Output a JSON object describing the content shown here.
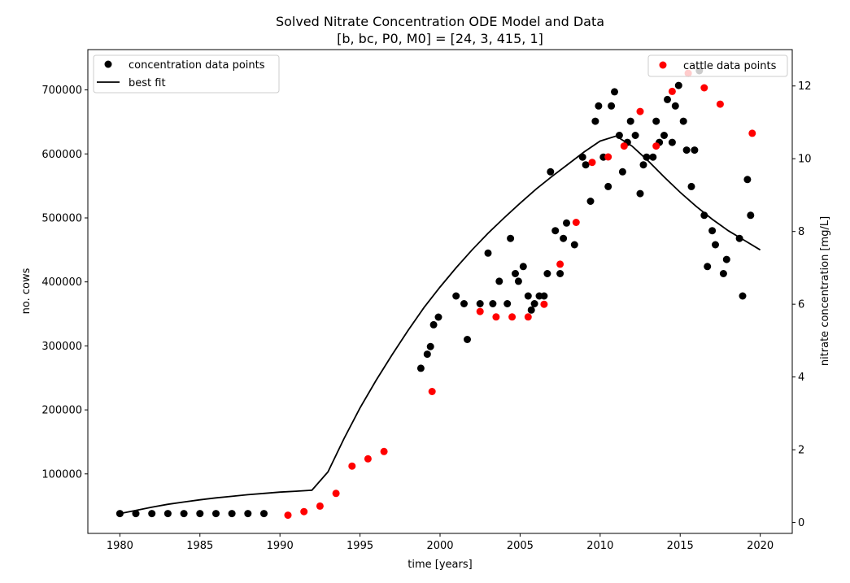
{
  "chart_data": {
    "type": "scatter",
    "title": "Solved Nitrate Concentration ODE Model and Data",
    "subtitle": "[b, bc, P0, M0] = [24, 3, 415, 1]",
    "xlabel": "time [years]",
    "ylabel_left": "no. cows",
    "ylabel_right": "nitrate concentration [mg/L]",
    "xlim": [
      1978,
      2022
    ],
    "ylim_left": [
      7000,
      763000
    ],
    "ylim_right": [
      -0.3,
      13.0
    ],
    "x_ticks": [
      1980,
      1985,
      1990,
      1995,
      2000,
      2005,
      2010,
      2015,
      2020
    ],
    "y_left_ticks": [
      100000,
      200000,
      300000,
      400000,
      500000,
      600000,
      700000
    ],
    "y_right_ticks": [
      0,
      2,
      4,
      6,
      8,
      10,
      12
    ],
    "grid": false,
    "legend_left": {
      "placement": "top-left",
      "entries": [
        {
          "label": "concentration data points",
          "marker": "dot",
          "color": "#000000"
        },
        {
          "label": "best fit",
          "marker": "line",
          "color": "#000000"
        }
      ]
    },
    "legend_right": {
      "placement": "top-right",
      "entries": [
        {
          "label": "cattle data points",
          "marker": "dot",
          "color": "#ff0000"
        }
      ]
    },
    "series": [
      {
        "name": "concentration data points",
        "axis": "left",
        "style": "markers",
        "color": "#000000",
        "x": [
          1980.0,
          1981.0,
          1982.0,
          1983.0,
          1984.0,
          1985.0,
          1986.0,
          1987.0,
          1988.0,
          1989.0,
          1998.8,
          1999.2,
          1999.4,
          1999.6,
          1999.9,
          2001.0,
          2001.5,
          2001.7,
          2002.5,
          2003.0,
          2003.3,
          2003.7,
          2004.2,
          2004.4,
          2004.7,
          2004.9,
          2005.2,
          2005.5,
          2005.7,
          2005.9,
          2006.2,
          2006.5,
          2006.7,
          2006.9,
          2007.2,
          2007.5,
          2007.7,
          2007.9,
          2008.4,
          2008.9,
          2009.1,
          2009.4,
          2009.7,
          2009.9,
          2010.2,
          2010.5,
          2010.7,
          2010.9,
          2011.2,
          2011.4,
          2011.7,
          2011.9,
          2012.2,
          2012.5,
          2012.7,
          2012.9,
          2013.3,
          2013.5,
          2013.7,
          2014.0,
          2014.2,
          2014.5,
          2014.7,
          2014.9,
          2015.2,
          2015.4,
          2015.7,
          2015.9,
          2016.2,
          2016.5,
          2016.7,
          2017.0,
          2017.2,
          2017.7,
          2017.9,
          2018.7,
          2018.9,
          2019.2,
          2019.4
        ],
        "y": [
          38000,
          38000,
          38000,
          38000,
          38000,
          38000,
          38000,
          38000,
          38000,
          38000,
          265000,
          287000,
          299000,
          333000,
          345000,
          378000,
          366000,
          310000,
          366000,
          445000,
          366000,
          401000,
          366000,
          468000,
          413000,
          401000,
          424000,
          378000,
          356000,
          366000,
          378000,
          378000,
          413000,
          572000,
          480000,
          413000,
          468000,
          492000,
          458000,
          595000,
          583000,
          526000,
          651000,
          675000,
          595000,
          549000,
          675000,
          697000,
          629000,
          572000,
          618000,
          651000,
          629000,
          538000,
          583000,
          595000,
          595000,
          651000,
          618000,
          629000,
          685000,
          618000,
          675000,
          707000,
          651000,
          606000,
          549000,
          606000,
          730000,
          504000,
          424000,
          480000,
          458000,
          413000,
          435000,
          468000,
          378000,
          560000,
          504000
        ]
      },
      {
        "name": "best fit",
        "axis": "left",
        "style": "line",
        "color": "#000000",
        "x": [
          1980,
          1981,
          1982,
          1983,
          1984,
          1985,
          1986,
          1987,
          1988,
          1989,
          1990,
          1991,
          1992,
          1993,
          1994,
          1995,
          1996,
          1997,
          1998,
          1999,
          2000,
          2001,
          2002,
          2003,
          2004,
          2005,
          2006,
          2007,
          2008,
          2009,
          2010,
          2011,
          2012,
          2013,
          2014,
          2015,
          2016,
          2017,
          2018,
          2019,
          2020
        ],
        "y": [
          38000,
          43000,
          48000,
          52500,
          56000,
          59500,
          62500,
          65000,
          67500,
          69500,
          71500,
          73000,
          74500,
          103000,
          155000,
          203000,
          246000,
          286000,
          324000,
          360000,
          392000,
          422000,
          450000,
          476000,
          500000,
          523000,
          545000,
          565000,
          584000,
          603000,
          620000,
          628000,
          612000,
          589000,
          564000,
          540000,
          518000,
          498000,
          480000,
          465000,
          450000
        ]
      },
      {
        "name": "cattle data points",
        "axis": "right",
        "style": "markers",
        "color": "#ff0000",
        "x": [
          1990.5,
          1991.5,
          1992.5,
          1993.5,
          1994.5,
          1995.5,
          1996.5,
          1999.5,
          2002.5,
          2003.5,
          2004.5,
          2005.5,
          2006.5,
          2007.5,
          2008.5,
          2009.5,
          2010.5,
          2011.5,
          2012.5,
          2013.5,
          2014.5,
          2015.5,
          2016.5,
          2017.5,
          2019.5
        ],
        "y": [
          0.2,
          0.3,
          0.45,
          0.8,
          1.55,
          1.75,
          1.95,
          3.6,
          5.8,
          5.65,
          5.65,
          5.65,
          6.0,
          7.1,
          8.25,
          9.9,
          10.05,
          10.35,
          11.3,
          10.35,
          11.85,
          12.35,
          11.95,
          11.5,
          10.7
        ]
      }
    ]
  }
}
